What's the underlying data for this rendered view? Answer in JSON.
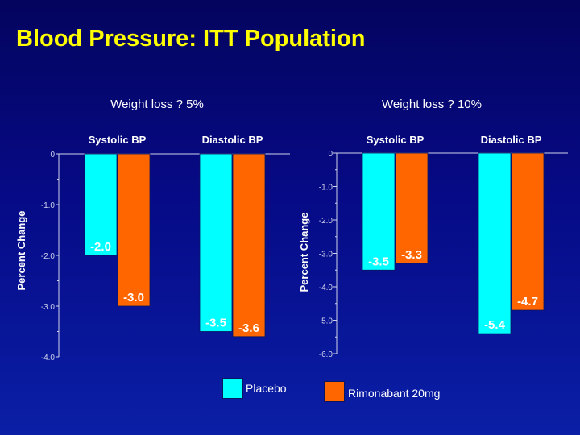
{
  "slide": {
    "title": "Blood Pressure: ITT Population"
  },
  "colors": {
    "placebo": "#00ffff",
    "rimonabant": "#ff6600",
    "axis": "#cfd3ea",
    "title": "#ffff00",
    "text": "#ffffff"
  },
  "legend": [
    {
      "label": "Placebo",
      "color": "#00ffff"
    },
    {
      "label": "Rimonabant 20mg",
      "color": "#ff6600"
    }
  ],
  "chart_data": [
    {
      "type": "bar",
      "title": "Weight loss ? 5%",
      "ylabel": "Percent Change",
      "categories": [
        "Systolic BP",
        "Diastolic BP"
      ],
      "series": [
        {
          "name": "Placebo",
          "values": [
            -2.0,
            -3.5
          ],
          "labels": [
            "-2.0",
            "-3.5"
          ]
        },
        {
          "name": "Rimonabant 20mg",
          "values": [
            -3.0,
            -3.6
          ],
          "labels": [
            "-3.0",
            "-3.6"
          ]
        }
      ],
      "ylim": [
        -4.0,
        0
      ],
      "yticks": [
        0,
        -1.0,
        -2.0,
        -3.0,
        -4.0
      ],
      "ytick_labels": [
        "0",
        "-1.0",
        "-2.0",
        "-3.0",
        "-4.0"
      ],
      "grid": false,
      "legend_position": "bottom"
    },
    {
      "type": "bar",
      "title": "Weight loss ? 10%",
      "ylabel": "Percent Change",
      "categories": [
        "Systolic BP",
        "Diastolic BP"
      ],
      "series": [
        {
          "name": "Placebo",
          "values": [
            -3.5,
            -5.4
          ],
          "labels": [
            "-3.5",
            "-5.4"
          ]
        },
        {
          "name": "Rimonabant 20mg",
          "values": [
            -3.3,
            -4.7
          ],
          "labels": [
            "-3.3",
            "-4.7"
          ]
        }
      ],
      "ylim": [
        -6.0,
        0
      ],
      "yticks": [
        0,
        -1.0,
        -2.0,
        -3.0,
        -4.0,
        -5.0,
        -6.0
      ],
      "ytick_labels": [
        "0",
        "-1.0",
        "-2.0",
        "-3.0",
        "-4.0",
        "-5.0",
        "-6.0"
      ],
      "grid": false,
      "legend_position": "bottom"
    }
  ]
}
